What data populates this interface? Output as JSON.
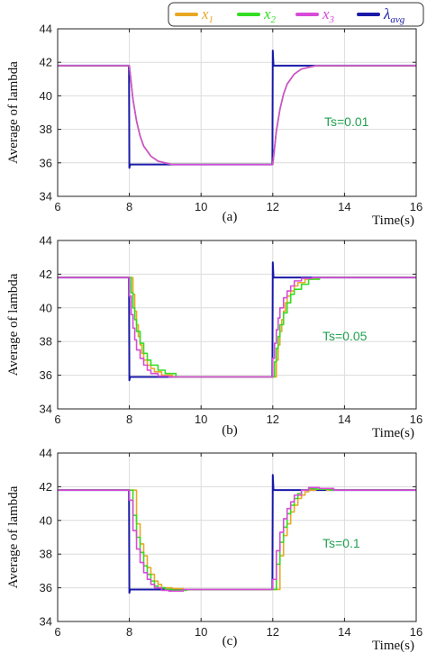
{
  "legend": {
    "entries": [
      {
        "label": "x",
        "sub": "1",
        "color": "#e8a825"
      },
      {
        "label": "x",
        "sub": "2",
        "color": "#33dd22"
      },
      {
        "label": "x",
        "sub": "3",
        "color": "#d84bd8"
      },
      {
        "label": "λ",
        "sub": "avg",
        "color": "#1a1aa8"
      }
    ]
  },
  "colors": {
    "x1": "#e8a825",
    "x2": "#33dd22",
    "x3": "#d84bd8",
    "lambda_avg": "#1a1aa8",
    "ts_label": "#22a050",
    "grid": "#dcdcdc"
  },
  "chart_data": [
    {
      "type": "line",
      "panel_label": "(a)",
      "ylabel": "Average of lambda",
      "xlabel": "Time(s)",
      "annotation": "Ts=0.01",
      "xlim": [
        6,
        16
      ],
      "ylim": [
        34,
        44
      ],
      "xticks": [
        "6",
        "8",
        "10",
        "12",
        "14",
        "16"
      ],
      "yticks": [
        "34",
        "36",
        "38",
        "40",
        "42",
        "44"
      ],
      "grid": true,
      "series": [
        {
          "key": "lambda_avg",
          "color": "#1a1aa8",
          "x": [
            6,
            7.99,
            8.0,
            8.02,
            8.1,
            11.99,
            12.0,
            12.02,
            12.1,
            16
          ],
          "y": [
            41.8,
            41.8,
            35.7,
            35.9,
            35.9,
            35.9,
            42.7,
            41.8,
            41.8,
            41.8
          ]
        },
        {
          "key": "x1",
          "color": "#e8a825",
          "x": [
            6,
            8,
            8.1,
            8.2,
            8.3,
            8.4,
            8.6,
            8.8,
            9.2,
            12,
            12.1,
            12.2,
            12.3,
            12.4,
            12.6,
            12.8,
            13.2,
            16
          ],
          "y": [
            41.8,
            41.8,
            39.8,
            38.5,
            37.6,
            37.0,
            36.4,
            36.1,
            35.9,
            35.9,
            37.9,
            39.2,
            40.1,
            40.7,
            41.3,
            41.6,
            41.8,
            41.8
          ]
        },
        {
          "key": "x2",
          "color": "#33dd22",
          "x": [
            6,
            8,
            8.1,
            8.2,
            8.3,
            8.4,
            8.6,
            8.8,
            9.2,
            12,
            12.1,
            12.2,
            12.3,
            12.4,
            12.6,
            12.8,
            13.2,
            16
          ],
          "y": [
            41.8,
            41.8,
            39.8,
            38.5,
            37.6,
            37.0,
            36.4,
            36.1,
            35.9,
            35.9,
            37.9,
            39.2,
            40.1,
            40.7,
            41.3,
            41.6,
            41.8,
            41.8
          ]
        },
        {
          "key": "x3",
          "color": "#d84bd8",
          "x": [
            6,
            8,
            8.1,
            8.2,
            8.3,
            8.4,
            8.6,
            8.8,
            9.2,
            12,
            12.1,
            12.2,
            12.3,
            12.4,
            12.6,
            12.8,
            13.2,
            16
          ],
          "y": [
            41.8,
            41.8,
            39.8,
            38.5,
            37.6,
            37.0,
            36.4,
            36.1,
            35.9,
            35.9,
            37.9,
            39.2,
            40.1,
            40.7,
            41.3,
            41.6,
            41.8,
            41.8
          ]
        }
      ]
    },
    {
      "type": "line",
      "panel_label": "(b)",
      "ylabel": "Average of lambda",
      "xlabel": "Time(s)",
      "annotation": "Ts=0.05",
      "xlim": [
        6,
        16
      ],
      "ylim": [
        34,
        44
      ],
      "xticks": [
        "6",
        "8",
        "10",
        "12",
        "14",
        "16"
      ],
      "yticks": [
        "34",
        "36",
        "38",
        "40",
        "42",
        "44"
      ],
      "grid": true,
      "series": [
        {
          "key": "lambda_avg",
          "color": "#1a1aa8",
          "x": [
            6,
            7.99,
            8.0,
            8.02,
            8.1,
            11.99,
            12.0,
            12.02,
            12.1,
            16
          ],
          "y": [
            41.8,
            41.8,
            35.7,
            35.9,
            35.9,
            35.9,
            42.7,
            41.8,
            41.8,
            41.8
          ]
        },
        {
          "key": "x1",
          "color": "#e8a825",
          "x": [
            6,
            8.1,
            8.1,
            8.15,
            8.15,
            8.2,
            8.2,
            8.25,
            8.25,
            8.3,
            8.3,
            8.35,
            8.35,
            8.4,
            8.4,
            8.5,
            8.5,
            8.6,
            8.6,
            8.7,
            8.7,
            8.9,
            8.9,
            9.2,
            9.2,
            12.1,
            12.1,
            12.15,
            12.15,
            12.2,
            12.2,
            12.25,
            12.25,
            12.3,
            12.3,
            12.35,
            12.35,
            12.4,
            12.4,
            12.5,
            12.5,
            12.6,
            12.6,
            12.7,
            12.7,
            12.9,
            12.9,
            13.3,
            13.3,
            16
          ],
          "y": [
            41.8,
            41.8,
            40.8,
            40.8,
            39.8,
            39.8,
            39.0,
            39.0,
            38.3,
            38.3,
            37.8,
            37.8,
            37.3,
            37.3,
            36.9,
            36.9,
            36.6,
            36.6,
            36.4,
            36.4,
            36.2,
            36.2,
            36.0,
            36.0,
            35.9,
            35.9,
            36.9,
            36.9,
            37.8,
            37.8,
            38.6,
            38.6,
            39.3,
            39.3,
            39.8,
            39.8,
            40.3,
            40.3,
            40.7,
            40.7,
            41.0,
            41.0,
            41.3,
            41.3,
            41.5,
            41.5,
            41.7,
            41.7,
            41.8,
            41.8
          ]
        },
        {
          "key": "x2",
          "color": "#33dd22",
          "x": [
            6,
            8.05,
            8.05,
            8.1,
            8.1,
            8.15,
            8.15,
            8.2,
            8.2,
            8.3,
            8.3,
            8.4,
            8.4,
            8.5,
            8.5,
            8.6,
            8.6,
            8.8,
            8.8,
            9.0,
            9.0,
            9.3,
            9.3,
            12.05,
            12.05,
            12.1,
            12.1,
            12.15,
            12.15,
            12.2,
            12.2,
            12.3,
            12.3,
            12.4,
            12.4,
            12.5,
            12.5,
            12.6,
            12.6,
            12.8,
            12.8,
            13.0,
            13.0,
            13.3,
            13.3,
            16
          ],
          "y": [
            41.8,
            41.8,
            40.9,
            40.9,
            40.0,
            40.0,
            39.3,
            39.3,
            38.6,
            38.6,
            37.9,
            37.9,
            37.3,
            37.3,
            36.9,
            36.9,
            36.6,
            36.6,
            36.3,
            36.3,
            36.1,
            36.1,
            35.9,
            35.9,
            36.8,
            36.8,
            37.6,
            37.6,
            38.3,
            38.3,
            39.0,
            39.0,
            39.7,
            39.7,
            40.3,
            40.3,
            40.8,
            40.8,
            41.1,
            41.1,
            41.4,
            41.4,
            41.7,
            41.7,
            41.8,
            41.8
          ]
        },
        {
          "key": "x3",
          "color": "#d84bd8",
          "x": [
            6,
            8.0,
            8.0,
            8.05,
            8.05,
            8.1,
            8.1,
            8.15,
            8.15,
            8.2,
            8.2,
            8.3,
            8.3,
            8.4,
            8.4,
            8.5,
            8.5,
            8.6,
            8.6,
            8.8,
            8.8,
            9.1,
            9.1,
            12.0,
            12.0,
            12.05,
            12.05,
            12.1,
            12.1,
            12.15,
            12.15,
            12.2,
            12.2,
            12.3,
            12.3,
            12.4,
            12.4,
            12.5,
            12.5,
            12.6,
            12.6,
            12.8,
            12.8,
            13.1,
            13.1,
            16
          ],
          "y": [
            41.8,
            41.8,
            40.7,
            40.7,
            39.6,
            39.6,
            38.8,
            38.8,
            38.1,
            38.1,
            37.5,
            37.5,
            37.0,
            37.0,
            36.6,
            36.6,
            36.3,
            36.3,
            36.1,
            36.1,
            35.95,
            35.95,
            35.9,
            35.9,
            37.0,
            37.0,
            37.9,
            37.9,
            38.7,
            38.7,
            39.4,
            39.4,
            40.0,
            40.0,
            40.6,
            40.6,
            41.0,
            41.0,
            41.3,
            41.3,
            41.6,
            41.6,
            41.75,
            41.75,
            41.8,
            41.8
          ]
        }
      ]
    },
    {
      "type": "line",
      "panel_label": "(c)",
      "ylabel": "Average of lambda",
      "xlabel": "Time(s)",
      "annotation": "Ts=0.1",
      "xlim": [
        6,
        16
      ],
      "ylim": [
        34,
        44
      ],
      "xticks": [
        "6",
        "8",
        "10",
        "12",
        "14",
        "16"
      ],
      "yticks": [
        "34",
        "36",
        "38",
        "40",
        "42",
        "44"
      ],
      "grid": true,
      "series": [
        {
          "key": "lambda_avg",
          "color": "#1a1aa8",
          "x": [
            6,
            7.99,
            8.0,
            8.02,
            8.1,
            11.99,
            12.0,
            12.02,
            12.1,
            16
          ],
          "y": [
            41.8,
            41.8,
            35.7,
            35.9,
            35.9,
            35.9,
            42.7,
            41.8,
            41.8,
            41.8
          ]
        },
        {
          "key": "x1",
          "color": "#e8a825",
          "x": [
            6,
            8.2,
            8.2,
            8.3,
            8.3,
            8.4,
            8.4,
            8.5,
            8.5,
            8.6,
            8.6,
            8.7,
            8.7,
            8.8,
            8.8,
            8.9,
            8.9,
            9.0,
            9.0,
            9.2,
            9.2,
            9.5,
            9.5,
            12.2,
            12.2,
            12.3,
            12.3,
            12.4,
            12.4,
            12.5,
            12.5,
            12.6,
            12.6,
            12.7,
            12.7,
            12.8,
            12.8,
            12.9,
            12.9,
            13.0,
            13.0,
            13.2,
            13.2,
            13.5,
            13.5,
            16
          ],
          "y": [
            41.8,
            41.8,
            39.8,
            39.8,
            38.6,
            38.6,
            37.9,
            37.9,
            37.2,
            37.2,
            36.8,
            36.8,
            36.4,
            36.4,
            36.2,
            36.2,
            36.0,
            36.0,
            36.0,
            36.0,
            35.95,
            35.95,
            35.9,
            35.9,
            37.9,
            37.9,
            39.1,
            39.1,
            39.8,
            39.8,
            40.5,
            40.5,
            40.9,
            40.9,
            41.3,
            41.3,
            41.5,
            41.5,
            41.7,
            41.7,
            41.8,
            41.8,
            41.85,
            41.85,
            41.8,
            41.8
          ]
        },
        {
          "key": "x2",
          "color": "#33dd22",
          "x": [
            6,
            8.1,
            8.1,
            8.2,
            8.2,
            8.3,
            8.3,
            8.4,
            8.4,
            8.5,
            8.5,
            8.6,
            8.6,
            8.7,
            8.7,
            8.8,
            8.8,
            9.0,
            9.0,
            9.2,
            9.2,
            9.6,
            9.6,
            12.1,
            12.1,
            12.2,
            12.2,
            12.3,
            12.3,
            12.4,
            12.4,
            12.5,
            12.5,
            12.6,
            12.6,
            12.7,
            12.7,
            12.8,
            12.8,
            13.0,
            13.0,
            13.2,
            13.2,
            13.6,
            13.6,
            16
          ],
          "y": [
            41.8,
            41.8,
            40.3,
            40.3,
            39.0,
            39.0,
            38.1,
            38.1,
            37.3,
            37.3,
            36.8,
            36.8,
            36.4,
            36.4,
            36.1,
            36.1,
            36.0,
            36.0,
            35.9,
            35.9,
            35.85,
            35.85,
            35.9,
            35.9,
            37.4,
            37.4,
            38.7,
            38.7,
            39.6,
            39.6,
            40.4,
            40.4,
            40.9,
            40.9,
            41.3,
            41.3,
            41.6,
            41.6,
            41.8,
            41.8,
            41.9,
            41.9,
            41.85,
            41.85,
            41.8,
            41.8
          ]
        },
        {
          "key": "x3",
          "color": "#d84bd8",
          "x": [
            6,
            8.0,
            8.0,
            8.1,
            8.1,
            8.2,
            8.2,
            8.3,
            8.3,
            8.4,
            8.4,
            8.5,
            8.5,
            8.6,
            8.6,
            8.7,
            8.7,
            8.9,
            8.9,
            9.1,
            9.1,
            9.5,
            9.5,
            12.0,
            12.0,
            12.1,
            12.1,
            12.2,
            12.2,
            12.3,
            12.3,
            12.4,
            12.4,
            12.5,
            12.5,
            12.6,
            12.6,
            12.8,
            12.8,
            13.0,
            13.0,
            13.3,
            13.3,
            13.7,
            13.7,
            16
          ],
          "y": [
            41.8,
            41.8,
            41.2,
            41.2,
            39.4,
            39.4,
            38.3,
            38.3,
            37.5,
            37.5,
            36.9,
            36.9,
            36.5,
            36.5,
            36.2,
            36.2,
            36.0,
            36.0,
            35.85,
            35.85,
            35.8,
            35.8,
            35.9,
            35.9,
            36.5,
            36.5,
            38.2,
            38.2,
            39.3,
            39.3,
            40.1,
            40.1,
            40.7,
            40.7,
            41.1,
            41.1,
            41.5,
            41.5,
            41.8,
            41.8,
            41.95,
            41.95,
            41.9,
            41.9,
            41.8,
            41.8
          ]
        }
      ]
    }
  ]
}
